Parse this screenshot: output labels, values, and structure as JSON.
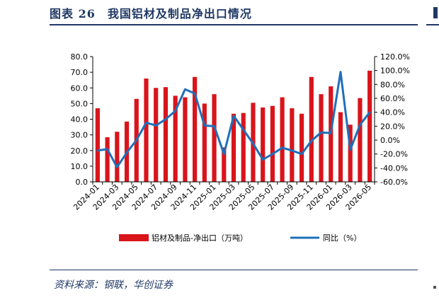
{
  "figure": {
    "title": "图表 26　我国铝材及制品净出口情况",
    "source": "资料来源：钢联，华创证券"
  },
  "colors": {
    "bar": "#d9141b",
    "line": "#1f6fb9",
    "title": "#1f3864"
  },
  "chart_data": {
    "type": "bar+line",
    "categories": [
      "2024-01",
      "2024-02",
      "2024-03",
      "2024-04",
      "2024-05",
      "2024-06",
      "2024-07",
      "2024-08",
      "2024-09",
      "2024-10",
      "2024-11",
      "2024-12",
      "2025-01",
      "2025-02",
      "2025-03",
      "2025-04",
      "2025-05",
      "2025-06",
      "2025-07",
      "2025-08",
      "2025-09",
      "2025-10",
      "2025-11",
      "2025-12",
      "2026-01",
      "2026-02",
      "2026-03",
      "2026-04",
      "2026-05"
    ],
    "tick_labels": [
      "2024-01",
      "2024-03",
      "2024-05",
      "2024-07",
      "2024-09",
      "2024-11",
      "2025-01",
      "2025-03",
      "2025-05",
      "2025-07",
      "2025-09",
      "2025-11",
      "2026-01",
      "2026-03",
      "2026-05"
    ],
    "series": [
      {
        "name": "铝材及制品-净出口（万吨）",
        "type": "bar",
        "axis": "left",
        "values": [
          47,
          28.5,
          32,
          38.5,
          53,
          66,
          60,
          60.5,
          55,
          54,
          67,
          50,
          56,
          22,
          43.5,
          44,
          50.5,
          47.5,
          48.5,
          54,
          47,
          43.5,
          67,
          56,
          61,
          44.5,
          36.5,
          53.5,
          71
        ]
      },
      {
        "name": "同比（%）",
        "type": "line",
        "axis": "right",
        "values": [
          -15,
          -13,
          -39,
          -18,
          0,
          25,
          21,
          30,
          42,
          73,
          67,
          21,
          20,
          -20,
          35,
          15,
          -5,
          -28,
          -20,
          -11,
          -15,
          -20,
          -1,
          11,
          10,
          98,
          -14,
          22,
          40
        ]
      }
    ],
    "y_left": {
      "ylim": [
        0,
        80
      ],
      "ticks": [
        "0.0",
        "10.0",
        "20.0",
        "30.0",
        "40.0",
        "50.0",
        "60.0",
        "70.0",
        "80.0"
      ]
    },
    "y_right": {
      "ylim": [
        -60,
        120
      ],
      "ticks": [
        "-60.0%",
        "-40.0%",
        "-20.0%",
        "0.0%",
        "20.0%",
        "40.0%",
        "60.0%",
        "80.0%",
        "100.0%",
        "120.0%"
      ]
    },
    "legend": {
      "position": "bottom"
    },
    "grid": false
  }
}
